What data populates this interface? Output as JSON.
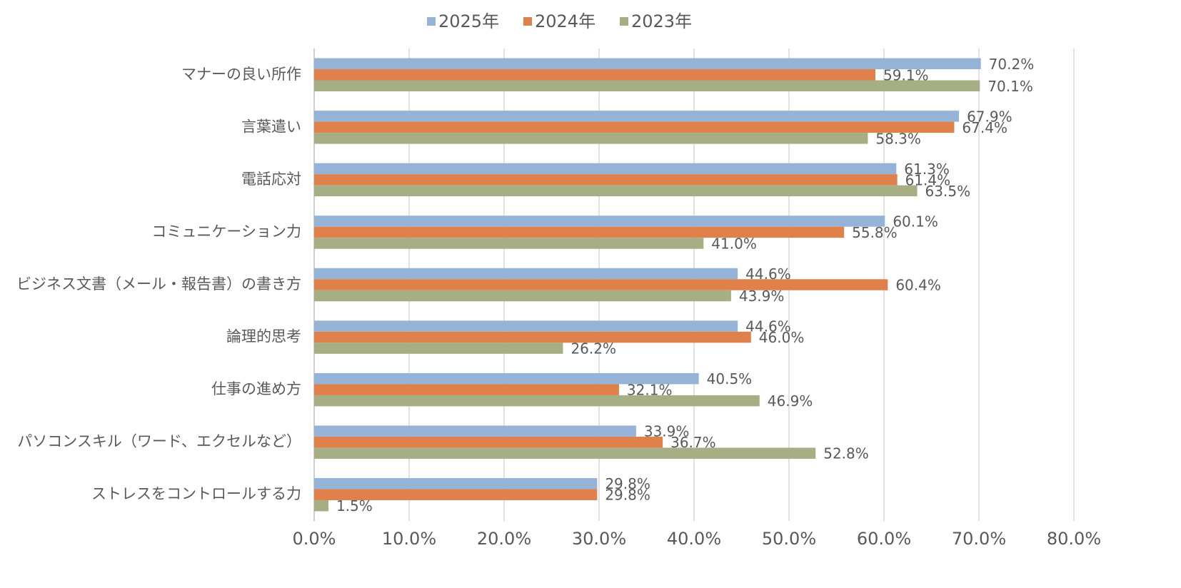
{
  "chart_data": {
    "type": "hbar",
    "categories": [
      "マナーの良い所作",
      "言葉遣い",
      "電話応対",
      "コミュニケーション力",
      "ビジネス文書（メール・報告書）の書き方",
      "論理的思考",
      "仕事の進め方",
      "パソコンスキル（ワード、エクセルなど）",
      "ストレスをコントロールする力"
    ],
    "series": [
      {
        "name": "2025年",
        "color": "#95b3d7",
        "values": [
          70.2,
          67.9,
          61.3,
          60.1,
          44.6,
          44.6,
          40.5,
          33.9,
          29.8
        ],
        "value_labels": [
          "70.2%",
          "67.9%",
          "61.3%",
          "60.1%",
          "44.6%",
          "44.6%",
          "40.5%",
          "33.9%",
          "29.8%"
        ]
      },
      {
        "name": "2024年",
        "color": "#e0804a",
        "values": [
          59.1,
          67.4,
          61.4,
          55.8,
          60.4,
          46.0,
          32.1,
          36.7,
          29.8
        ],
        "value_labels": [
          "59.1%",
          "67.4%",
          "61.4%",
          "55.8%",
          "60.4%",
          "46.0%",
          "32.1%",
          "36.7%",
          "29.8%"
        ]
      },
      {
        "name": "2023年",
        "color": "#a6ae84",
        "values": [
          70.1,
          58.3,
          63.5,
          41.0,
          43.9,
          26.2,
          46.9,
          52.8,
          1.5
        ],
        "value_labels": [
          "70.1%",
          "58.3%",
          "63.5%",
          "41.0%",
          "43.9%",
          "26.2%",
          "46.9%",
          "52.8%",
          "1.5%"
        ]
      }
    ],
    "xlim": [
      0,
      80
    ],
    "xticks": [
      {
        "value": 0,
        "label": "0.0%"
      },
      {
        "value": 10,
        "label": "10.0%"
      },
      {
        "value": 20,
        "label": "20.0%"
      },
      {
        "value": 30,
        "label": "30.0%"
      },
      {
        "value": 40,
        "label": "40.0%"
      },
      {
        "value": 50,
        "label": "50.0%"
      },
      {
        "value": 60,
        "label": "60.0%"
      },
      {
        "value": 70,
        "label": "70.0%"
      },
      {
        "value": 80,
        "label": "80.0%"
      }
    ],
    "grid": true,
    "legend": "top"
  }
}
